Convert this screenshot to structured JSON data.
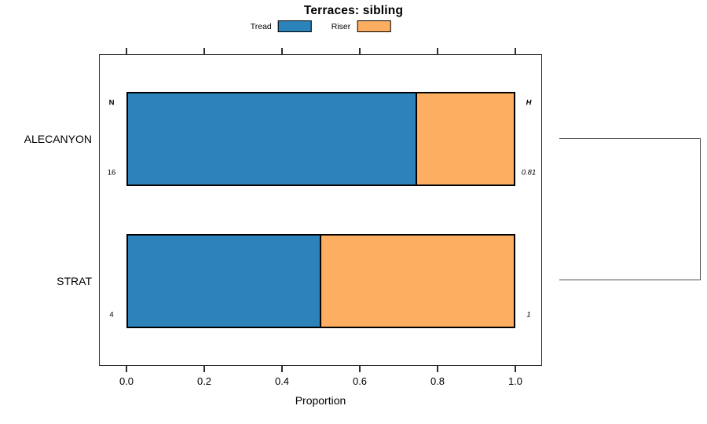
{
  "chart_data": {
    "type": "bar",
    "subtype": "horizontal-stacked-proportion",
    "title": "Terraces: sibling",
    "categories": [
      "ALECANYON",
      "STRAT"
    ],
    "series": [
      {
        "name": "Tread",
        "color": "#2B83BA",
        "values": [
          0.75,
          0.5
        ]
      },
      {
        "name": "Riser",
        "color": "#FDAE61",
        "values": [
          0.25,
          0.5
        ]
      }
    ],
    "xlabel": "Proportion",
    "xlim": [
      0,
      1
    ],
    "x_ticks": {
      "values": [
        0.0,
        0.2,
        0.4,
        0.6,
        0.8,
        1.0
      ],
      "labels": [
        "0.0",
        "0.2",
        "0.4",
        "0.6",
        "0.8",
        "1.0"
      ]
    },
    "legend_position": "top-center",
    "grid": false,
    "row_annotations": {
      "left_header": "N",
      "right_header": "H",
      "left_values": [
        "16",
        "4"
      ],
      "right_values": [
        "0.81",
        "1"
      ]
    },
    "right_bracket": true
  }
}
